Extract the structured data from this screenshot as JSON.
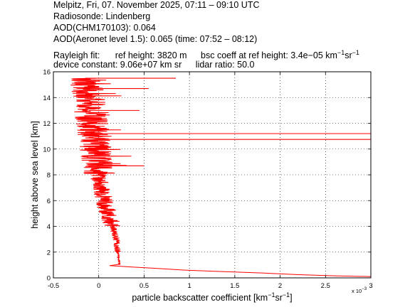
{
  "header": {
    "line1": "Melpitz, Fri, 07. November 2025, 07:11 – 09:10 UTC",
    "line2": "Radiosonde: Lindenberg",
    "line3": "AOD(CHM170103): 0.064",
    "line4": "AOD(Aeronet level 1.5): 0.065   (time: 07:52 – 08:12)",
    "rayleigh_label": "Rayleigh fit:",
    "ref_height": "ref height: 3820 m",
    "bsc_coeff_prefix": "bsc coeff at ref height: 3.4e−05 km",
    "bsc_coeff_exp1": "−1",
    "bsc_coeff_mid": "sr",
    "bsc_coeff_exp2": "−1",
    "device_constant": "device constant: 9.06e+07 km sr",
    "lidar_ratio": "lidar ratio: 50.0"
  },
  "chart_data": {
    "type": "line",
    "xlabel_prefix": "particle backscatter coefficient [km",
    "xlabel_exp1": "−1",
    "xlabel_mid": "sr",
    "xlabel_exp2": "−1",
    "xlabel_suffix": "]",
    "ylabel": "height above sea level [km]",
    "x_multiplier_label": "x 10",
    "x_multiplier_exp": "−3",
    "xlim": [
      -0.5,
      3
    ],
    "ylim": [
      0,
      16
    ],
    "x_ticks": [
      -0.5,
      0,
      0.5,
      1,
      1.5,
      2,
      2.5,
      3
    ],
    "x_tick_labels": [
      "-0.5",
      "0",
      "0.5",
      "1",
      "1.5",
      "2",
      "2.5",
      "3"
    ],
    "y_ticks": [
      0,
      2,
      4,
      6,
      8,
      10,
      12,
      14,
      16
    ],
    "y_tick_labels": [
      "0",
      "2",
      "4",
      "6",
      "8",
      "10",
      "12",
      "14",
      "16"
    ],
    "grid": "dotted",
    "line_color": "#ff0000",
    "profile": [
      {
        "x": 3.0,
        "y": 0.1
      },
      {
        "x": 2.6,
        "y": 0.16
      },
      {
        "x": 2.2,
        "y": 0.25
      },
      {
        "x": 1.8,
        "y": 0.38
      },
      {
        "x": 1.3,
        "y": 0.5
      },
      {
        "x": 0.9,
        "y": 0.62
      },
      {
        "x": 0.6,
        "y": 0.75
      },
      {
        "x": 0.35,
        "y": 0.85
      },
      {
        "x": 0.12,
        "y": 0.95
      },
      {
        "x": 0.08,
        "y": 1.05
      },
      {
        "x": 0.07,
        "y": 1.5
      },
      {
        "x": 0.06,
        "y": 2.0
      },
      {
        "x": 0.05,
        "y": 2.5
      },
      {
        "x": 0.04,
        "y": 3.0
      },
      {
        "x": 0.02,
        "y": 3.5
      },
      {
        "x": 0.0,
        "y": 4.0
      },
      {
        "x": -0.03,
        "y": 4.5
      },
      {
        "x": -0.05,
        "y": 5.0
      },
      {
        "x": -0.08,
        "y": 5.5
      },
      {
        "x": -0.1,
        "y": 6.0
      },
      {
        "x": -0.12,
        "y": 6.5
      },
      {
        "x": -0.14,
        "y": 7.0
      },
      {
        "x": -0.15,
        "y": 7.5
      },
      {
        "x": -0.16,
        "y": 8.0
      },
      {
        "x": -0.17,
        "y": 8.5
      },
      {
        "x": -0.18,
        "y": 9.0
      },
      {
        "x": -0.19,
        "y": 9.5
      },
      {
        "x": -0.2,
        "y": 10.0
      },
      {
        "x": -0.21,
        "y": 10.5
      },
      {
        "x": -0.22,
        "y": 11.0
      },
      {
        "x": -0.23,
        "y": 11.5
      },
      {
        "x": -0.24,
        "y": 12.0
      },
      {
        "x": -0.25,
        "y": 12.5
      },
      {
        "x": -0.26,
        "y": 13.0
      },
      {
        "x": -0.27,
        "y": 13.5
      },
      {
        "x": -0.28,
        "y": 14.0
      },
      {
        "x": -0.29,
        "y": 14.5
      },
      {
        "x": -0.3,
        "y": 15.0
      },
      {
        "x": -0.3,
        "y": 15.5
      }
    ],
    "spikes": [
      {
        "y": 11.2,
        "x": 3.0
      },
      {
        "y": 10.75,
        "x": 3.0
      },
      {
        "y": 15.5,
        "x": 0.85
      },
      {
        "y": 8.7,
        "x": 0.5
      },
      {
        "y": 13.0,
        "x": 0.45
      },
      {
        "y": 14.7,
        "x": 0.55
      }
    ]
  }
}
